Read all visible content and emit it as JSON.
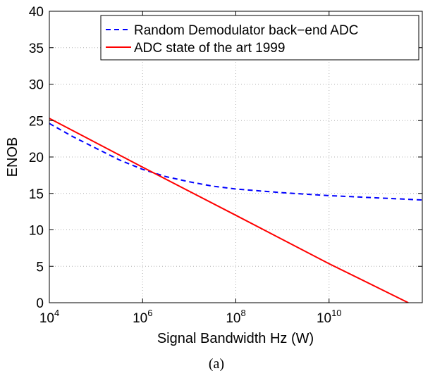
{
  "chart_data": {
    "type": "line",
    "title": "",
    "xlabel": "Signal Bandwidth Hz (W)",
    "ylabel": "ENOB",
    "caption": "(a)",
    "x_scale": "log",
    "xlim": [
      10000,
      1000000000000
    ],
    "ylim": [
      0,
      40
    ],
    "x_ticks": [
      {
        "value": 10000,
        "base": "10",
        "exp": "4"
      },
      {
        "value": 1000000,
        "base": "10",
        "exp": "6"
      },
      {
        "value": 100000000,
        "base": "10",
        "exp": "8"
      },
      {
        "value": 10000000000,
        "base": "10",
        "exp": "10"
      }
    ],
    "y_ticks": [
      "0",
      "5",
      "10",
      "15",
      "20",
      "25",
      "30",
      "35",
      "40"
    ],
    "grid": true,
    "legend_position": "top-right",
    "series": [
      {
        "name": "Random Demodulator back−end ADC",
        "color": "#0000ff",
        "style": "dashed",
        "x": [
          10000,
          31620,
          100000,
          316200,
          1000000,
          3162000,
          10000000,
          31620000,
          100000000,
          316200000,
          1000000000,
          3162000000,
          10000000000,
          31620000000,
          100000000000,
          316200000000,
          1000000000000
        ],
        "y": [
          24.6,
          22.8,
          21.2,
          19.6,
          18.3,
          17.3,
          16.6,
          16.0,
          15.6,
          15.35,
          15.1,
          14.9,
          14.7,
          14.55,
          14.4,
          14.25,
          14.1
        ]
      },
      {
        "name": "ADC state of the art 1999",
        "color": "#ff0000",
        "style": "solid",
        "x": [
          10000,
          1000000,
          100000000,
          10000000000,
          500000000000
        ],
        "y": [
          25.3,
          18.6,
          12.0,
          5.35,
          0
        ]
      }
    ]
  }
}
